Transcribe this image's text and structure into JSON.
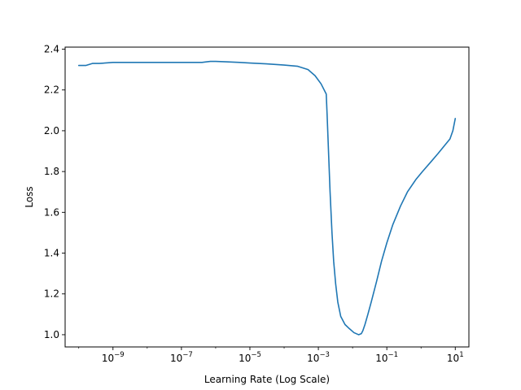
{
  "chart_data": {
    "type": "line",
    "title": "",
    "xlabel": "Learning Rate (Log Scale)",
    "ylabel": "Loss",
    "xscale": "log",
    "xlim": [
      4e-11,
      25.0
    ],
    "ylim": [
      0.94,
      2.41
    ],
    "grid": false,
    "legend": "none",
    "x_ticks": [
      {
        "value": 1e-09,
        "base": "10",
        "exp": "−9"
      },
      {
        "value": 1e-07,
        "base": "10",
        "exp": "−7"
      },
      {
        "value": 1e-05,
        "base": "10",
        "exp": "−5"
      },
      {
        "value": 0.001,
        "base": "10",
        "exp": "−3"
      },
      {
        "value": 0.1,
        "base": "10",
        "exp": "−1"
      },
      {
        "value": 10,
        "base": "10",
        "exp": "1"
      }
    ],
    "y_ticks": [
      "1.0",
      "1.2",
      "1.4",
      "1.6",
      "1.8",
      "2.0",
      "2.2",
      "2.4"
    ],
    "series": [
      {
        "color": "#1f77b4",
        "x": [
          1e-10,
          1.6e-10,
          2.5e-10,
          4e-10,
          1e-09,
          3e-09,
          1e-08,
          5e-08,
          2e-07,
          4e-07,
          7e-07,
          1e-06,
          2e-06,
          5e-06,
          1e-05,
          3e-05,
          0.0001,
          0.00025,
          0.0005,
          0.0008,
          0.0012,
          0.0017,
          0.0018,
          0.002,
          0.0022,
          0.0025,
          0.0028,
          0.0032,
          0.0037,
          0.0045,
          0.006,
          0.008,
          0.011,
          0.015,
          0.018,
          0.02,
          0.023,
          0.028,
          0.035,
          0.05,
          0.07,
          0.1,
          0.15,
          0.25,
          0.4,
          0.7,
          1.1,
          2,
          3.2,
          5,
          7,
          8.5,
          10.0
        ],
        "y": [
          2.32,
          2.32,
          2.33,
          2.33,
          2.335,
          2.335,
          2.335,
          2.335,
          2.335,
          2.335,
          2.34,
          2.34,
          2.338,
          2.335,
          2.332,
          2.328,
          2.322,
          2.316,
          2.3,
          2.27,
          2.23,
          2.18,
          2.08,
          1.88,
          1.7,
          1.5,
          1.36,
          1.25,
          1.16,
          1.09,
          1.05,
          1.03,
          1.01,
          1.0,
          1.005,
          1.02,
          1.05,
          1.1,
          1.16,
          1.26,
          1.36,
          1.45,
          1.54,
          1.63,
          1.7,
          1.76,
          1.8,
          1.85,
          1.89,
          1.93,
          1.96,
          2.0,
          2.06
        ]
      }
    ]
  }
}
